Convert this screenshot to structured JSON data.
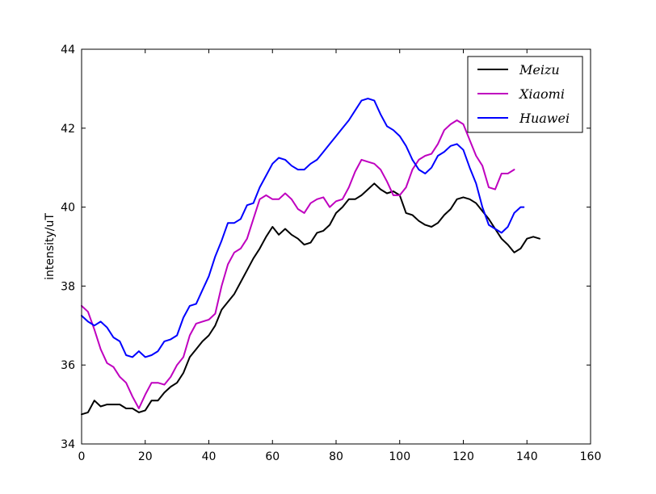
{
  "chart_data": {
    "type": "line",
    "title": "",
    "xlabel": "",
    "ylabel": "intensity/uT",
    "xlim": [
      0,
      160
    ],
    "ylim": [
      34,
      44
    ],
    "xticks": [
      0,
      20,
      40,
      60,
      80,
      100,
      120,
      140,
      160
    ],
    "yticks": [
      34,
      36,
      38,
      40,
      42,
      44
    ],
    "grid": false,
    "legend_position": "top-right",
    "series": [
      {
        "name": "Meizu",
        "color": "#000000",
        "points": [
          [
            0,
            34.75
          ],
          [
            2,
            34.8
          ],
          [
            4,
            35.1
          ],
          [
            6,
            34.95
          ],
          [
            8,
            35.0
          ],
          [
            10,
            35.0
          ],
          [
            12,
            35.0
          ],
          [
            14,
            34.9
          ],
          [
            16,
            34.9
          ],
          [
            18,
            34.8
          ],
          [
            20,
            34.85
          ],
          [
            22,
            35.1
          ],
          [
            24,
            35.1
          ],
          [
            26,
            35.3
          ],
          [
            28,
            35.45
          ],
          [
            30,
            35.55
          ],
          [
            32,
            35.8
          ],
          [
            34,
            36.2
          ],
          [
            36,
            36.4
          ],
          [
            38,
            36.6
          ],
          [
            40,
            36.75
          ],
          [
            42,
            37.0
          ],
          [
            44,
            37.4
          ],
          [
            46,
            37.6
          ],
          [
            48,
            37.8
          ],
          [
            50,
            38.1
          ],
          [
            52,
            38.4
          ],
          [
            54,
            38.7
          ],
          [
            56,
            38.95
          ],
          [
            58,
            39.25
          ],
          [
            60,
            39.5
          ],
          [
            62,
            39.3
          ],
          [
            64,
            39.45
          ],
          [
            66,
            39.3
          ],
          [
            68,
            39.2
          ],
          [
            70,
            39.05
          ],
          [
            72,
            39.1
          ],
          [
            74,
            39.35
          ],
          [
            76,
            39.4
          ],
          [
            78,
            39.55
          ],
          [
            80,
            39.85
          ],
          [
            82,
            40.0
          ],
          [
            84,
            40.2
          ],
          [
            86,
            40.2
          ],
          [
            88,
            40.3
          ],
          [
            90,
            40.45
          ],
          [
            92,
            40.6
          ],
          [
            94,
            40.45
          ],
          [
            96,
            40.35
          ],
          [
            98,
            40.4
          ],
          [
            100,
            40.3
          ],
          [
            102,
            39.85
          ],
          [
            104,
            39.8
          ],
          [
            106,
            39.65
          ],
          [
            108,
            39.55
          ],
          [
            110,
            39.5
          ],
          [
            112,
            39.6
          ],
          [
            114,
            39.8
          ],
          [
            116,
            39.95
          ],
          [
            118,
            40.2
          ],
          [
            120,
            40.25
          ],
          [
            122,
            40.2
          ],
          [
            124,
            40.1
          ],
          [
            126,
            39.9
          ],
          [
            128,
            39.7
          ],
          [
            130,
            39.45
          ],
          [
            132,
            39.2
          ],
          [
            134,
            39.05
          ],
          [
            136,
            38.85
          ],
          [
            138,
            38.95
          ],
          [
            140,
            39.2
          ],
          [
            142,
            39.25
          ],
          [
            144,
            39.2
          ]
        ]
      },
      {
        "name": "Xiaomi",
        "color": "#bf00bf",
        "points": [
          [
            0,
            37.5
          ],
          [
            2,
            37.35
          ],
          [
            4,
            36.9
          ],
          [
            6,
            36.4
          ],
          [
            8,
            36.05
          ],
          [
            10,
            35.95
          ],
          [
            12,
            35.7
          ],
          [
            14,
            35.55
          ],
          [
            16,
            35.2
          ],
          [
            18,
            34.9
          ],
          [
            20,
            35.25
          ],
          [
            22,
            35.55
          ],
          [
            24,
            35.55
          ],
          [
            26,
            35.5
          ],
          [
            28,
            35.7
          ],
          [
            30,
            36.0
          ],
          [
            32,
            36.2
          ],
          [
            34,
            36.75
          ],
          [
            36,
            37.05
          ],
          [
            38,
            37.1
          ],
          [
            40,
            37.15
          ],
          [
            42,
            37.3
          ],
          [
            44,
            38.0
          ],
          [
            46,
            38.55
          ],
          [
            48,
            38.85
          ],
          [
            50,
            38.95
          ],
          [
            52,
            39.2
          ],
          [
            54,
            39.7
          ],
          [
            56,
            40.2
          ],
          [
            58,
            40.3
          ],
          [
            60,
            40.2
          ],
          [
            62,
            40.2
          ],
          [
            64,
            40.35
          ],
          [
            66,
            40.2
          ],
          [
            68,
            39.95
          ],
          [
            70,
            39.85
          ],
          [
            72,
            40.1
          ],
          [
            74,
            40.2
          ],
          [
            76,
            40.25
          ],
          [
            78,
            40.0
          ],
          [
            80,
            40.15
          ],
          [
            82,
            40.2
          ],
          [
            84,
            40.5
          ],
          [
            86,
            40.9
          ],
          [
            88,
            41.2
          ],
          [
            90,
            41.15
          ],
          [
            92,
            41.1
          ],
          [
            94,
            40.95
          ],
          [
            96,
            40.65
          ],
          [
            98,
            40.3
          ],
          [
            100,
            40.3
          ],
          [
            102,
            40.5
          ],
          [
            104,
            40.95
          ],
          [
            106,
            41.2
          ],
          [
            108,
            41.3
          ],
          [
            110,
            41.35
          ],
          [
            112,
            41.6
          ],
          [
            114,
            41.95
          ],
          [
            116,
            42.1
          ],
          [
            118,
            42.2
          ],
          [
            120,
            42.1
          ],
          [
            122,
            41.7
          ],
          [
            124,
            41.3
          ],
          [
            126,
            41.05
          ],
          [
            128,
            40.5
          ],
          [
            130,
            40.45
          ],
          [
            132,
            40.85
          ],
          [
            134,
            40.85
          ],
          [
            136,
            40.95
          ]
        ]
      },
      {
        "name": "Huawei",
        "color": "#0000ff",
        "points": [
          [
            0,
            37.25
          ],
          [
            2,
            37.1
          ],
          [
            4,
            37.0
          ],
          [
            6,
            37.1
          ],
          [
            8,
            36.95
          ],
          [
            10,
            36.7
          ],
          [
            12,
            36.6
          ],
          [
            14,
            36.25
          ],
          [
            16,
            36.2
          ],
          [
            18,
            36.35
          ],
          [
            20,
            36.2
          ],
          [
            22,
            36.25
          ],
          [
            24,
            36.35
          ],
          [
            26,
            36.6
          ],
          [
            28,
            36.65
          ],
          [
            30,
            36.75
          ],
          [
            32,
            37.2
          ],
          [
            34,
            37.5
          ],
          [
            36,
            37.55
          ],
          [
            38,
            37.9
          ],
          [
            40,
            38.25
          ],
          [
            42,
            38.75
          ],
          [
            44,
            39.15
          ],
          [
            46,
            39.6
          ],
          [
            48,
            39.6
          ],
          [
            50,
            39.7
          ],
          [
            52,
            40.05
          ],
          [
            54,
            40.1
          ],
          [
            56,
            40.5
          ],
          [
            58,
            40.8
          ],
          [
            60,
            41.1
          ],
          [
            62,
            41.25
          ],
          [
            64,
            41.2
          ],
          [
            66,
            41.05
          ],
          [
            68,
            40.95
          ],
          [
            70,
            40.95
          ],
          [
            72,
            41.1
          ],
          [
            74,
            41.2
          ],
          [
            76,
            41.4
          ],
          [
            78,
            41.6
          ],
          [
            80,
            41.8
          ],
          [
            82,
            42.0
          ],
          [
            84,
            42.2
          ],
          [
            86,
            42.45
          ],
          [
            88,
            42.7
          ],
          [
            90,
            42.75
          ],
          [
            92,
            42.7
          ],
          [
            94,
            42.35
          ],
          [
            96,
            42.05
          ],
          [
            98,
            41.95
          ],
          [
            100,
            41.8
          ],
          [
            102,
            41.55
          ],
          [
            104,
            41.2
          ],
          [
            106,
            40.95
          ],
          [
            108,
            40.85
          ],
          [
            110,
            41.0
          ],
          [
            112,
            41.3
          ],
          [
            114,
            41.4
          ],
          [
            116,
            41.55
          ],
          [
            118,
            41.6
          ],
          [
            120,
            41.45
          ],
          [
            122,
            41.0
          ],
          [
            124,
            40.6
          ],
          [
            126,
            40.0
          ],
          [
            128,
            39.55
          ],
          [
            130,
            39.45
          ],
          [
            132,
            39.35
          ],
          [
            134,
            39.5
          ],
          [
            136,
            39.85
          ],
          [
            138,
            40.0
          ],
          [
            139,
            40.0
          ]
        ]
      }
    ]
  }
}
